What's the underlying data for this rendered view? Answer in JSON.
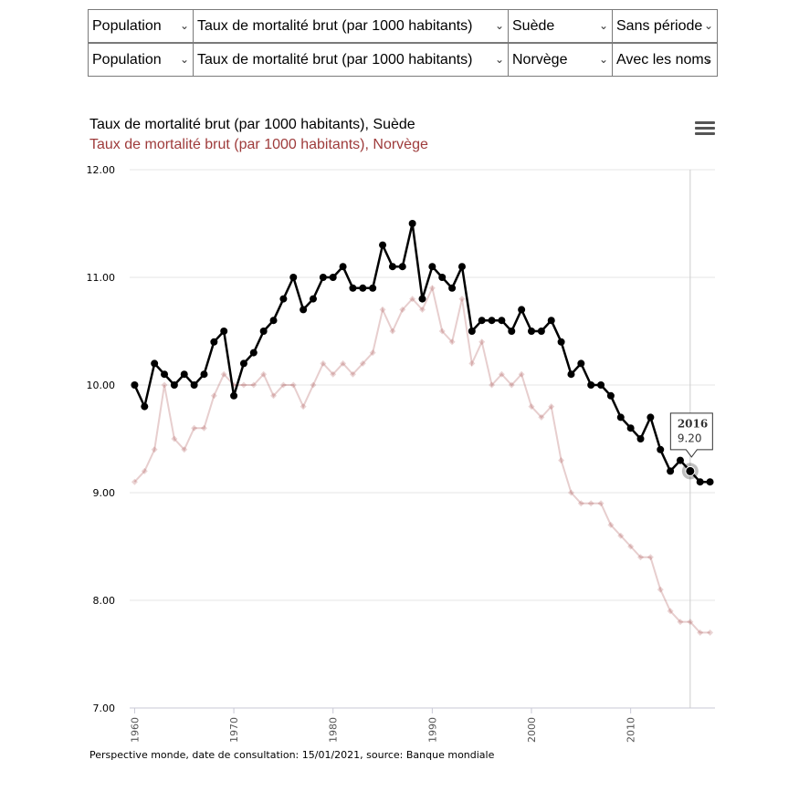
{
  "selectors": [
    [
      {
        "value": "Population"
      },
      {
        "value": "Taux de mortalité brut (par 1000 habitants)"
      },
      {
        "value": "Suède"
      },
      {
        "value": "Sans période"
      }
    ],
    [
      {
        "value": "Population"
      },
      {
        "value": "Taux de mortalité brut (par 1000 habitants)"
      },
      {
        "value": "Norvège"
      },
      {
        "value": "Avec les noms"
      }
    ]
  ],
  "menu_icon": "hamburger-menu-icon",
  "footer": "Perspective monde, date de consultation: 15/01/2021, source: Banque mondiale",
  "chart_data": {
    "type": "line",
    "x": [
      1960,
      1961,
      1962,
      1963,
      1964,
      1965,
      1966,
      1967,
      1968,
      1969,
      1970,
      1971,
      1972,
      1973,
      1974,
      1975,
      1976,
      1977,
      1978,
      1979,
      1980,
      1981,
      1982,
      1983,
      1984,
      1985,
      1986,
      1987,
      1988,
      1989,
      1990,
      1991,
      1992,
      1993,
      1994,
      1995,
      1996,
      1997,
      1998,
      1999,
      2000,
      2001,
      2002,
      2003,
      2004,
      2005,
      2006,
      2007,
      2008,
      2009,
      2010,
      2011,
      2012,
      2013,
      2014,
      2015,
      2016,
      2017,
      2018
    ],
    "series": [
      {
        "name": "Taux de mortalité brut (par 1000 habitants), Suède",
        "color": "#000000",
        "values": [
          10.0,
          9.8,
          10.2,
          10.1,
          10.0,
          10.1,
          10.0,
          10.1,
          10.4,
          10.5,
          9.9,
          10.2,
          10.3,
          10.5,
          10.6,
          10.8,
          11.0,
          10.7,
          10.8,
          11.0,
          11.0,
          11.1,
          10.9,
          10.9,
          10.9,
          11.3,
          11.1,
          11.1,
          11.5,
          10.8,
          11.1,
          11.0,
          10.9,
          11.1,
          10.5,
          10.6,
          10.6,
          10.6,
          10.5,
          10.7,
          10.5,
          10.5,
          10.6,
          10.4,
          10.1,
          10.2,
          10.0,
          10.0,
          9.9,
          9.7,
          9.6,
          9.5,
          9.7,
          9.4,
          9.2,
          9.3,
          9.2,
          9.1,
          9.1
        ]
      },
      {
        "name": "Taux de mortalité brut (par 1000 habitants), Norvège",
        "color": "#9e3b3b",
        "values": [
          9.1,
          9.2,
          9.4,
          10.0,
          9.5,
          9.4,
          9.6,
          9.6,
          9.9,
          10.1,
          10.0,
          10.0,
          10.0,
          10.1,
          9.9,
          10.0,
          10.0,
          9.8,
          10.0,
          10.2,
          10.1,
          10.2,
          10.1,
          10.2,
          10.3,
          10.7,
          10.5,
          10.7,
          10.8,
          10.7,
          10.9,
          10.5,
          10.4,
          10.8,
          10.2,
          10.4,
          10.0,
          10.1,
          10.0,
          10.1,
          9.8,
          9.7,
          9.8,
          9.3,
          9.0,
          8.9,
          8.9,
          8.9,
          8.7,
          8.6,
          8.5,
          8.4,
          8.4,
          8.1,
          7.9,
          7.8,
          7.8,
          7.7,
          7.7
        ]
      }
    ],
    "y_ticks": [
      "12.00",
      "11.00",
      "10.00",
      "9.00",
      "8.00",
      "7.00"
    ],
    "ylim": [
      7,
      12
    ],
    "x_ticks": [
      "1960",
      "1970",
      "1980",
      "1990",
      "2000",
      "2010"
    ],
    "xlim": [
      1959.5,
      2018.5
    ],
    "tooltip": {
      "title": "2016",
      "value": "9.20"
    },
    "grid": true
  }
}
